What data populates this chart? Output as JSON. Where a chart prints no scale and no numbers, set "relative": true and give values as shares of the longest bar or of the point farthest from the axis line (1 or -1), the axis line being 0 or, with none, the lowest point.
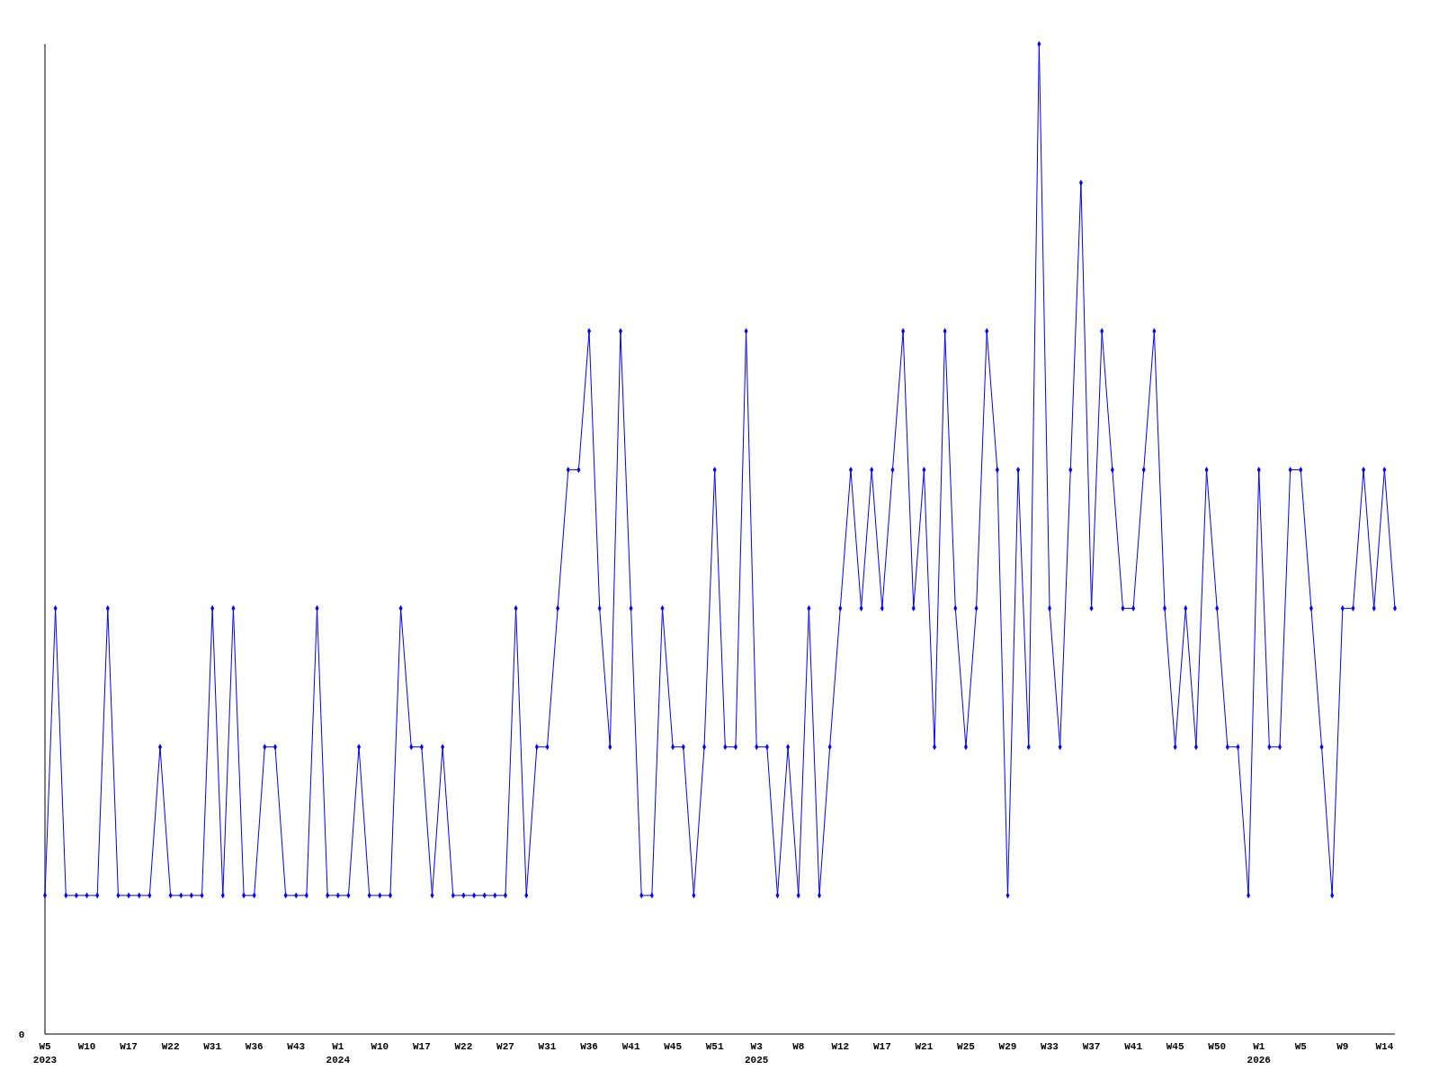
{
  "chart_data": {
    "type": "line",
    "relative": true,
    "annotations": [
      "0"
    ],
    "marker": "diamond",
    "line_style": "solid",
    "categories": [
      "W5\n2023",
      null,
      null,
      null,
      "W10",
      null,
      null,
      null,
      "W17",
      null,
      null,
      null,
      "W22",
      null,
      null,
      null,
      "W31",
      null,
      null,
      null,
      "W36",
      null,
      null,
      null,
      "W43",
      null,
      null,
      null,
      "W1\n2024",
      null,
      null,
      null,
      "W10",
      null,
      null,
      null,
      "W17",
      null,
      null,
      null,
      "W22",
      null,
      null,
      null,
      "W27",
      null,
      null,
      null,
      "W31",
      null,
      null,
      null,
      "W36",
      null,
      null,
      null,
      "W41",
      null,
      null,
      null,
      "W45",
      null,
      null,
      null,
      "W51",
      null,
      null,
      null,
      "W3\n2025",
      null,
      null,
      null,
      "W8",
      null,
      null,
      null,
      "W12",
      null,
      null,
      null,
      "W17",
      null,
      null,
      null,
      "W21",
      null,
      null,
      null,
      "W25",
      null,
      null,
      null,
      "W29",
      null,
      null,
      null,
      "W33",
      null,
      null,
      null,
      "W37",
      null,
      null,
      null,
      "W41",
      null,
      null,
      null,
      "W45",
      null,
      null,
      null,
      "W50",
      null,
      null,
      null,
      "W1\n2026",
      null,
      null,
      null,
      "W5",
      null,
      null,
      null,
      "W9",
      null,
      null,
      null,
      "W14",
      null
    ],
    "series": [
      {
        "color": "#0000ff",
        "values": [
          0.14,
          0.43,
          0.14,
          0.14,
          0.14,
          0.14,
          0.43,
          0.14,
          0.14,
          0.14,
          0.14,
          0.29,
          0.14,
          0.14,
          0.14,
          0.14,
          0.43,
          0.14,
          0.43,
          0.14,
          0.14,
          0.29,
          0.29,
          0.14,
          0.14,
          0.14,
          0.43,
          0.14,
          0.14,
          0.14,
          0.29,
          0.14,
          0.14,
          0.14,
          0.43,
          0.29,
          0.29,
          0.14,
          0.29,
          0.14,
          0.14,
          0.14,
          0.14,
          0.14,
          0.14,
          0.43,
          0.14,
          0.29,
          0.29,
          0.43,
          0.57,
          0.57,
          0.71,
          0.43,
          0.29,
          0.71,
          0.43,
          0.14,
          0.14,
          0.43,
          0.29,
          0.29,
          0.14,
          0.29,
          0.57,
          0.29,
          0.29,
          0.71,
          0.29,
          0.29,
          0.14,
          0.29,
          0.14,
          0.43,
          0.14,
          0.29,
          0.43,
          0.57,
          0.43,
          0.57,
          0.43,
          0.57,
          0.71,
          0.43,
          0.57,
          0.29,
          0.71,
          0.43,
          0.29,
          0.43,
          0.71,
          0.57,
          0.14,
          0.57,
          0.29,
          1,
          0.43,
          0.29,
          0.57,
          0.86,
          0.43,
          0.71,
          0.57,
          0.43,
          0.43,
          0.57,
          0.71,
          0.43,
          0.29,
          0.43,
          0.29,
          0.57,
          0.43,
          0.29,
          0.29,
          0.14,
          0.57,
          0.29,
          0.29,
          0.57,
          0.57,
          0.43,
          0.29,
          0.14,
          0.43,
          0.43,
          0.57,
          0.43,
          0.57,
          0.43
        ]
      }
    ]
  }
}
